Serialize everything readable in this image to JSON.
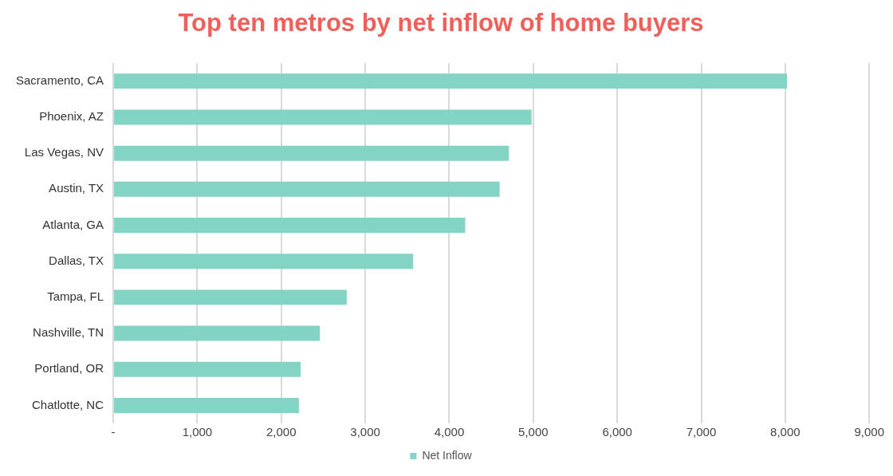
{
  "chart_data": {
    "type": "bar",
    "orientation": "horizontal",
    "title": "Top ten metros by net inflow of home buyers",
    "categories": [
      "Sacramento, CA",
      "Phoenix, AZ",
      "Las Vegas, NV",
      "Austin, TX",
      "Atlanta, GA",
      "Dallas, TX",
      "Tampa, FL",
      "Nashville, TN",
      "Portland, OR",
      "Chatlotte, NC"
    ],
    "series": [
      {
        "name": "Net Inflow",
        "color": "#84d4c6",
        "values": [
          8020,
          4980,
          4710,
          4600,
          4190,
          3570,
          2780,
          2460,
          2230,
          2210
        ]
      }
    ],
    "xlim": [
      0,
      9000
    ],
    "xticks": [
      {
        "value": 0,
        "label": "-"
      },
      {
        "value": 1000,
        "label": "1,000"
      },
      {
        "value": 2000,
        "label": "2,000"
      },
      {
        "value": 3000,
        "label": "3,000"
      },
      {
        "value": 4000,
        "label": "4,000"
      },
      {
        "value": 5000,
        "label": "5,000"
      },
      {
        "value": 6000,
        "label": "6,000"
      },
      {
        "value": 7000,
        "label": "7,000"
      },
      {
        "value": 8000,
        "label": "8,000"
      },
      {
        "value": 9000,
        "label": "9,000"
      }
    ],
    "grid": "x",
    "legend": "bottom"
  }
}
